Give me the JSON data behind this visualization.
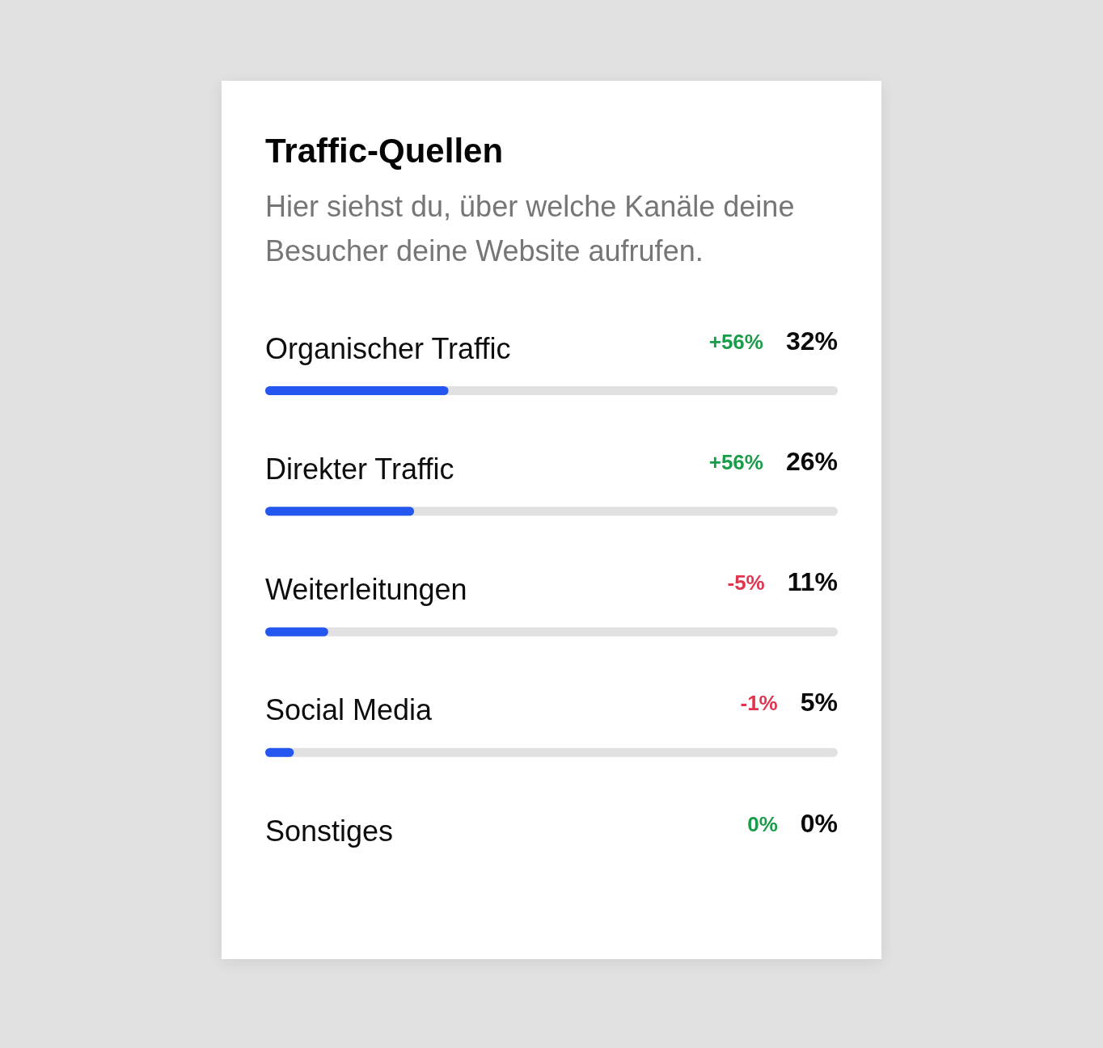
{
  "chart_data": {
    "type": "bar",
    "orientation": "horizontal",
    "title": "Traffic-Quellen",
    "subtitle": "Hier siehst du, über welche Kanäle deine Besucher deine Website aufrufen.",
    "categories": [
      "Organischer Traffic",
      "Direkter Traffic",
      "Weiterleitungen",
      "Social Media",
      "Sonstiges"
    ],
    "values": [
      32,
      26,
      11,
      5,
      0
    ],
    "color": "#2456f0",
    "xlim": [
      0,
      100
    ],
    "tick_labels": "y",
    "value_labels": [
      "32%",
      "26%",
      "11%",
      "5%",
      "0%"
    ],
    "annotations": [
      "+56%",
      "+56%",
      "-5%",
      "-1%",
      "0%"
    ]
  }
}
